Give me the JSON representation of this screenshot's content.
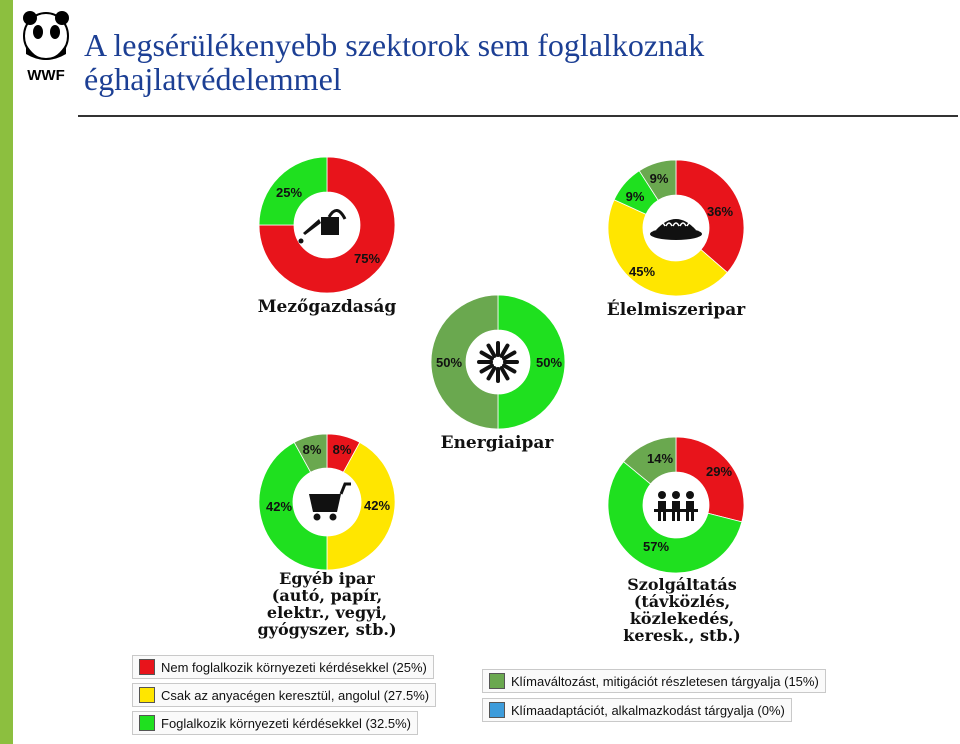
{
  "page": {
    "title_line1": "A legsérülékenyebb szektorok sem foglalkoznak",
    "title_line2": "éghajlatvédelemmel",
    "logo_text": "WWF"
  },
  "colors": {
    "red": "#e8141b",
    "yellow": "#ffe600",
    "bright_green": "#1fe01f",
    "dark_green": "#6aa84f",
    "blue": "#3d9cdb",
    "accent_bar": "#8cbf3f",
    "title": "#1c3f94"
  },
  "chart_data": [
    {
      "type": "pie",
      "style": "donut",
      "sector_label": [
        "Mezőgazdaság"
      ],
      "icon": "watering-can-icon",
      "slices": [
        {
          "category": "Nem foglalkozik",
          "value": 75,
          "label": "75%",
          "color": "#e8141b"
        },
        {
          "category": "Foglalkozik",
          "value": 25,
          "label": "25%",
          "color": "#1fe01f"
        }
      ]
    },
    {
      "type": "pie",
      "style": "donut",
      "sector_label": [
        "Élelmiszeripar"
      ],
      "icon": "food-plate-icon",
      "slices": [
        {
          "category": "Nem foglalkozik",
          "value": 36,
          "label": "36%",
          "color": "#e8141b"
        },
        {
          "category": "Anyacégen keresztül",
          "value": 45,
          "label": "45%",
          "color": "#ffe600"
        },
        {
          "category": "Foglalkozik",
          "value": 9,
          "label": "9%",
          "color": "#1fe01f"
        },
        {
          "category": "Klímaváltozás részletesen",
          "value": 9,
          "label": "9%",
          "color": "#6aa84f"
        }
      ]
    },
    {
      "type": "pie",
      "style": "donut",
      "sector_label": [
        "Energiaipar"
      ],
      "icon": "sunburst-icon",
      "slices": [
        {
          "category": "Foglalkozik",
          "value": 50,
          "label": "50%",
          "color": "#1fe01f"
        },
        {
          "category": "Klímaváltozás részletesen",
          "value": 50,
          "label": "50%",
          "color": "#6aa84f"
        }
      ]
    },
    {
      "type": "pie",
      "style": "donut",
      "sector_label": [
        "Egyéb ipar",
        "(autó, papír,",
        "elektr., vegyi,",
        "gyógyszer, stb.)"
      ],
      "icon": "shopping-cart-icon",
      "slices": [
        {
          "category": "Nem foglalkozik",
          "value": 8,
          "label": "8%",
          "color": "#e8141b"
        },
        {
          "category": "Anyacégen keresztül",
          "value": 42,
          "label": "42%",
          "color": "#ffe600"
        },
        {
          "category": "Foglalkozik",
          "value": 42,
          "label": "42%",
          "color": "#1fe01f"
        },
        {
          "category": "Klímaváltozás részletesen",
          "value": 8,
          "label": "8%",
          "color": "#6aa84f"
        }
      ]
    },
    {
      "type": "pie",
      "style": "donut",
      "sector_label": [
        "Szolgáltatás",
        "(távközlés,",
        "közlekedés,",
        "keresk., stb.)"
      ],
      "icon": "people-icon",
      "slices": [
        {
          "category": "Nem foglalkozik",
          "value": 29,
          "label": "29%",
          "color": "#e8141b"
        },
        {
          "category": "Foglalkozik",
          "value": 57,
          "label": "57%",
          "color": "#1fe01f"
        },
        {
          "category": "Klímaváltozás részletesen",
          "value": 14,
          "label": "14%",
          "color": "#6aa84f"
        }
      ]
    }
  ],
  "legend": [
    {
      "label": "Nem foglalkozik környezeti kérdésekkel (25%)",
      "color": "#e8141b"
    },
    {
      "label": "Csak az anyacégen keresztül, angolul (27.5%)",
      "color": "#ffe600"
    },
    {
      "label": "Foglalkozik környezeti kérdésekkel (32.5%)",
      "color": "#1fe01f"
    },
    {
      "label": "Klímaváltozást, mitigációt részletesen tárgyalja (15%)",
      "color": "#6aa84f"
    },
    {
      "label": "Klímaadaptációt, alkalmazkodást tárgyalja (0%)",
      "color": "#3d9cdb"
    }
  ]
}
